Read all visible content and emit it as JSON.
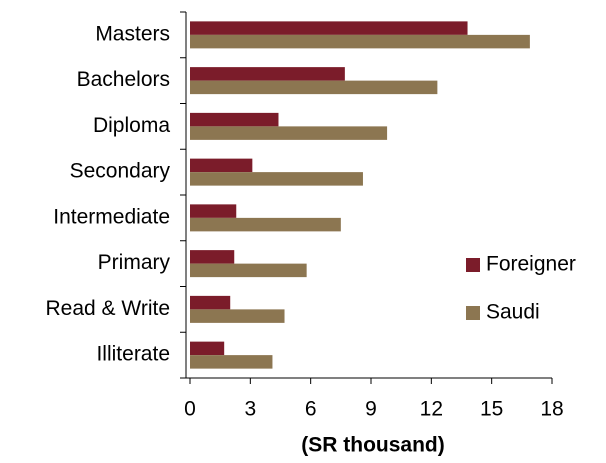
{
  "chart_data": {
    "type": "hbar",
    "categories": [
      "Masters",
      "Bachelors",
      "Diploma",
      "Secondary",
      "Intermediate",
      "Primary",
      "Read & Write",
      "Illiterate"
    ],
    "series": [
      {
        "name": "Foreigner",
        "color": "#7b1c2a",
        "values": [
          13.8,
          7.7,
          4.4,
          3.1,
          2.3,
          2.2,
          2.0,
          1.7
        ]
      },
      {
        "name": "Saudi",
        "color": "#8c7651",
        "values": [
          16.9,
          12.3,
          9.8,
          8.6,
          7.5,
          5.8,
          4.7,
          4.1
        ]
      }
    ],
    "x_label": "(SR thousand)",
    "xlim": [
      0,
      18
    ],
    "xticks": [
      0,
      3,
      6,
      9,
      12,
      15,
      18
    ],
    "grid": false,
    "legend": "right"
  }
}
